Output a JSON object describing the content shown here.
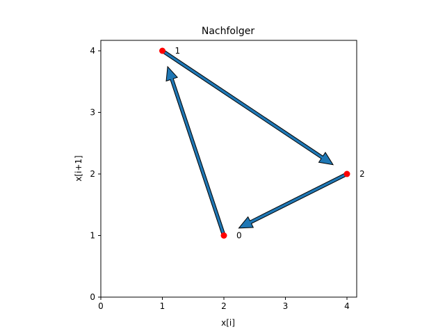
{
  "chart_data": {
    "type": "scatter",
    "title": "Nachfolger",
    "xlabel": "x[i]",
    "ylabel": "x[i+1]",
    "xlim": [
      0,
      4.17
    ],
    "ylim": [
      0,
      4.17
    ],
    "x_ticks": [
      "0",
      "1",
      "2",
      "3",
      "4"
    ],
    "y_ticks": [
      "0",
      "1",
      "2",
      "3",
      "4"
    ],
    "grid": false,
    "points": [
      {
        "label": "0",
        "x": 2,
        "y": 1
      },
      {
        "label": "1",
        "x": 1,
        "y": 4
      },
      {
        "label": "2",
        "x": 4,
        "y": 2
      }
    ],
    "arrows": [
      {
        "from": [
          2,
          1
        ],
        "to": [
          1,
          4
        ]
      },
      {
        "from": [
          1,
          4
        ],
        "to": [
          4,
          2
        ]
      },
      {
        "from": [
          4,
          2
        ],
        "to": [
          2,
          1
        ]
      }
    ],
    "point_color": "#ff0000",
    "arrow_color": "#1f77b4"
  }
}
